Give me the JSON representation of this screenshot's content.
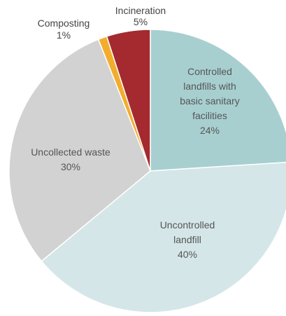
{
  "chart_data": {
    "type": "pie",
    "title": "",
    "slices": [
      {
        "label_lines": [
          "Controlled",
          "landfills with",
          "basic sanitary",
          "facilities"
        ],
        "pct_text": "24%",
        "value": 24,
        "color": "#a8cfd0"
      },
      {
        "label_lines": [
          "Uncontrolled",
          "landfill"
        ],
        "pct_text": "40%",
        "value": 40,
        "color": "#d4e6e8"
      },
      {
        "label_lines": [
          "Uncollected waste"
        ],
        "pct_text": "30%",
        "value": 30,
        "color": "#d2d2d2"
      },
      {
        "label_lines": [
          "Composting"
        ],
        "pct_text": "1%",
        "value": 1,
        "color": "#f2ad2c"
      },
      {
        "label_lines": [
          "Incineration"
        ],
        "pct_text": "5%",
        "value": 5,
        "color": "#a42a2f"
      }
    ]
  }
}
